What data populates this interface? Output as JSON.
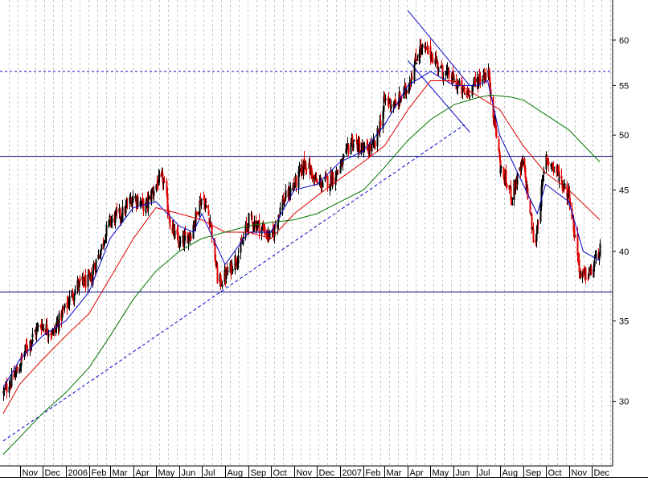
{
  "chart_data": {
    "type": "candlestick",
    "title": "",
    "xlabel": "",
    "ylabel": "",
    "y_scale": "log",
    "ylim": [
      26.5,
      64.8
    ],
    "y_ticks": [
      {
        "value": 30,
        "label": "30"
      },
      {
        "value": 35,
        "label": "35"
      },
      {
        "value": 40,
        "label": "40"
      },
      {
        "value": 45,
        "label": "45"
      },
      {
        "value": 50,
        "label": "50"
      },
      {
        "value": 55,
        "label": "55"
      },
      {
        "value": 60,
        "label": "60"
      }
    ],
    "x_range": [
      "2005-10-10",
      "2007-12-12"
    ],
    "x_labels": [
      {
        "date": "2005-11-01",
        "label": "Nov"
      },
      {
        "date": "2005-12-01",
        "label": "Dec"
      },
      {
        "date": "2006-01-01",
        "label": "2006"
      },
      {
        "date": "2006-02-01",
        "label": "Feb"
      },
      {
        "date": "2006-03-01",
        "label": "Mar"
      },
      {
        "date": "2006-04-01",
        "label": "Apr"
      },
      {
        "date": "2006-05-01",
        "label": "May"
      },
      {
        "date": "2006-06-01",
        "label": "Jun"
      },
      {
        "date": "2006-07-01",
        "label": "Jul"
      },
      {
        "date": "2006-08-01",
        "label": "Aug"
      },
      {
        "date": "2006-09-01",
        "label": "Sep"
      },
      {
        "date": "2006-10-01",
        "label": "Oct"
      },
      {
        "date": "2006-11-01",
        "label": "Nov"
      },
      {
        "date": "2006-12-01",
        "label": "Dec"
      },
      {
        "date": "2007-01-01",
        "label": "2007"
      },
      {
        "date": "2007-02-01",
        "label": "Feb"
      },
      {
        "date": "2007-03-01",
        "label": "Mar"
      },
      {
        "date": "2007-04-01",
        "label": "Apr"
      },
      {
        "date": "2007-05-01",
        "label": "May"
      },
      {
        "date": "2007-06-01",
        "label": "Jun"
      },
      {
        "date": "2007-07-01",
        "label": "Jul"
      },
      {
        "date": "2007-08-01",
        "label": "Aug"
      },
      {
        "date": "2007-09-01",
        "label": "Sep"
      },
      {
        "date": "2007-10-01",
        "label": "Oct"
      },
      {
        "date": "2007-11-01",
        "label": "Nov"
      },
      {
        "date": "2007-12-01",
        "label": "Dec"
      }
    ],
    "price_path": [
      [
        "2005-10-10",
        30.5
      ],
      [
        "2005-10-25",
        31.5
      ],
      [
        "2005-11-10",
        33.3
      ],
      [
        "2005-11-28",
        34.8
      ],
      [
        "2005-12-15",
        34.2
      ],
      [
        "2006-01-01",
        36.0
      ],
      [
        "2006-01-16",
        37.5
      ],
      [
        "2006-02-01",
        37.8
      ],
      [
        "2006-02-15",
        40.0
      ],
      [
        "2006-03-01",
        42.5
      ],
      [
        "2006-03-16",
        43.0
      ],
      [
        "2006-04-01",
        44.5
      ],
      [
        "2006-04-16",
        43.5
      ],
      [
        "2006-05-01",
        45.5
      ],
      [
        "2006-05-10",
        46.0
      ],
      [
        "2006-05-20",
        42.0
      ],
      [
        "2006-06-01",
        40.5
      ],
      [
        "2006-06-16",
        41.5
      ],
      [
        "2006-07-01",
        44.5
      ],
      [
        "2006-07-12",
        42.5
      ],
      [
        "2006-07-22",
        37.5
      ],
      [
        "2006-08-05",
        38.5
      ],
      [
        "2006-08-20",
        40.0
      ],
      [
        "2006-09-01",
        42.5
      ],
      [
        "2006-09-16",
        42.0
      ],
      [
        "2006-10-01",
        41.0
      ],
      [
        "2006-10-16",
        44.0
      ],
      [
        "2006-11-01",
        45.5
      ],
      [
        "2006-11-15",
        47.5
      ],
      [
        "2006-12-01",
        45.5
      ],
      [
        "2006-12-16",
        45.8
      ],
      [
        "2007-01-01",
        47.0
      ],
      [
        "2007-01-16",
        49.5
      ],
      [
        "2007-02-01",
        48.5
      ],
      [
        "2007-02-16",
        49.0
      ],
      [
        "2007-03-01",
        53.5
      ],
      [
        "2007-03-16",
        53.0
      ],
      [
        "2007-04-01",
        55.0
      ],
      [
        "2007-04-16",
        59.0
      ],
      [
        "2007-05-01",
        58.5
      ],
      [
        "2007-05-16",
        56.5
      ],
      [
        "2007-06-01",
        55.5
      ],
      [
        "2007-06-16",
        54.0
      ],
      [
        "2007-07-01",
        55.5
      ],
      [
        "2007-07-16",
        56.5
      ],
      [
        "2007-08-01",
        47.0
      ],
      [
        "2007-08-16",
        44.5
      ],
      [
        "2007-09-01",
        47.5
      ],
      [
        "2007-09-16",
        40.0
      ],
      [
        "2007-10-01",
        48.0
      ],
      [
        "2007-10-16",
        46.5
      ],
      [
        "2007-11-01",
        44.5
      ],
      [
        "2007-11-16",
        38.0
      ],
      [
        "2007-12-01",
        38.5
      ],
      [
        "2007-12-12",
        40.3
      ]
    ],
    "indicator_lines": [
      {
        "color": "#0000cc",
        "width": 1,
        "points": [
          [
            "2005-10-10",
            30.8
          ],
          [
            "2005-11-01",
            32.5
          ],
          [
            "2005-12-01",
            34.0
          ],
          [
            "2006-01-01",
            35.0
          ],
          [
            "2006-02-01",
            37.0
          ],
          [
            "2006-03-01",
            41.0
          ],
          [
            "2006-04-01",
            43.5
          ],
          [
            "2006-05-01",
            44.0
          ],
          [
            "2006-06-01",
            42.0
          ],
          [
            "2006-06-20",
            41.5
          ],
          [
            "2006-07-01",
            43.0
          ],
          [
            "2006-08-01",
            39.0
          ],
          [
            "2006-09-01",
            41.5
          ],
          [
            "2006-10-01",
            41.5
          ],
          [
            "2006-11-01",
            45.0
          ],
          [
            "2006-12-01",
            45.5
          ],
          [
            "2007-01-01",
            47.5
          ],
          [
            "2007-02-01",
            48.5
          ],
          [
            "2007-03-01",
            51.0
          ],
          [
            "2007-04-01",
            55.0
          ],
          [
            "2007-05-01",
            56.5
          ],
          [
            "2007-06-01",
            55.0
          ],
          [
            "2007-07-01",
            55.0
          ],
          [
            "2007-07-16",
            55.5
          ],
          [
            "2007-08-01",
            50.0
          ],
          [
            "2007-09-01",
            45.5
          ],
          [
            "2007-09-20",
            43.0
          ],
          [
            "2007-10-01",
            45.5
          ],
          [
            "2007-11-01",
            44.0
          ],
          [
            "2007-11-20",
            40.0
          ],
          [
            "2007-12-12",
            39.3
          ]
        ]
      },
      {
        "color": "#dd0000",
        "width": 1,
        "points": [
          [
            "2005-10-10",
            29.3
          ],
          [
            "2005-11-01",
            31.0
          ],
          [
            "2005-12-01",
            32.5
          ],
          [
            "2006-01-01",
            34.0
          ],
          [
            "2006-02-01",
            35.5
          ],
          [
            "2006-03-01",
            38.0
          ],
          [
            "2006-04-01",
            41.0
          ],
          [
            "2006-05-01",
            43.5
          ],
          [
            "2006-06-01",
            43.0
          ],
          [
            "2006-07-01",
            42.5
          ],
          [
            "2006-08-01",
            41.5
          ],
          [
            "2006-09-01",
            41.5
          ],
          [
            "2006-10-01",
            41.0
          ],
          [
            "2006-11-01",
            43.0
          ],
          [
            "2006-12-01",
            44.5
          ],
          [
            "2007-01-01",
            46.0
          ],
          [
            "2007-02-01",
            47.5
          ],
          [
            "2007-03-01",
            49.0
          ],
          [
            "2007-04-01",
            52.5
          ],
          [
            "2007-05-01",
            55.5
          ],
          [
            "2007-06-01",
            55.5
          ],
          [
            "2007-07-01",
            54.0
          ],
          [
            "2007-08-01",
            52.5
          ],
          [
            "2007-09-01",
            49.0
          ],
          [
            "2007-10-01",
            46.5
          ],
          [
            "2007-11-01",
            45.0
          ],
          [
            "2007-12-12",
            42.5
          ]
        ]
      },
      {
        "color": "#007700",
        "width": 1,
        "points": [
          [
            "2005-10-10",
            27.1
          ],
          [
            "2005-11-01",
            28.0
          ],
          [
            "2005-12-01",
            29.3
          ],
          [
            "2006-01-01",
            30.5
          ],
          [
            "2006-02-01",
            32.0
          ],
          [
            "2006-03-01",
            34.0
          ],
          [
            "2006-04-01",
            36.5
          ],
          [
            "2006-05-01",
            38.5
          ],
          [
            "2006-06-01",
            40.0
          ],
          [
            "2006-07-01",
            41.0
          ],
          [
            "2006-08-01",
            41.5
          ],
          [
            "2006-09-01",
            42.0
          ],
          [
            "2006-10-01",
            42.3
          ],
          [
            "2006-11-01",
            42.5
          ],
          [
            "2006-12-01",
            43.0
          ],
          [
            "2007-01-01",
            44.0
          ],
          [
            "2007-02-01",
            45.0
          ],
          [
            "2007-03-01",
            47.0
          ],
          [
            "2007-04-01",
            49.5
          ],
          [
            "2007-05-01",
            51.5
          ],
          [
            "2007-06-01",
            53.0
          ],
          [
            "2007-07-01",
            53.7
          ],
          [
            "2007-07-20",
            54.0
          ],
          [
            "2007-08-15",
            53.8
          ],
          [
            "2007-09-01",
            53.5
          ],
          [
            "2007-10-01",
            52.0
          ],
          [
            "2007-11-01",
            50.5
          ],
          [
            "2007-12-12",
            47.5
          ]
        ]
      }
    ],
    "support_lines": [
      {
        "price": 56.5,
        "color": "#0000cc",
        "dashed": true
      },
      {
        "price": 48.0,
        "color": "#000080",
        "dashed": false
      },
      {
        "price": 37.0,
        "color": "#000080",
        "dashed": false
      }
    ],
    "trend_lines": [
      {
        "color": "#0000cc",
        "dashed": true,
        "from": [
          "2005-10-10",
          27.8
        ],
        "to": [
          "2007-06-15",
          51.0
        ]
      },
      {
        "color": "#0000cc",
        "dashed": false,
        "from": [
          "2007-04-01",
          57.7
        ],
        "to": [
          "2007-06-22",
          50.3
        ]
      },
      {
        "color": "#0000cc",
        "dashed": false,
        "from": [
          "2007-04-01",
          63.5
        ],
        "to": [
          "2007-06-22",
          55.0
        ]
      }
    ],
    "grid": {
      "vertical": true,
      "horizontal": false,
      "style": "dashed"
    }
  }
}
